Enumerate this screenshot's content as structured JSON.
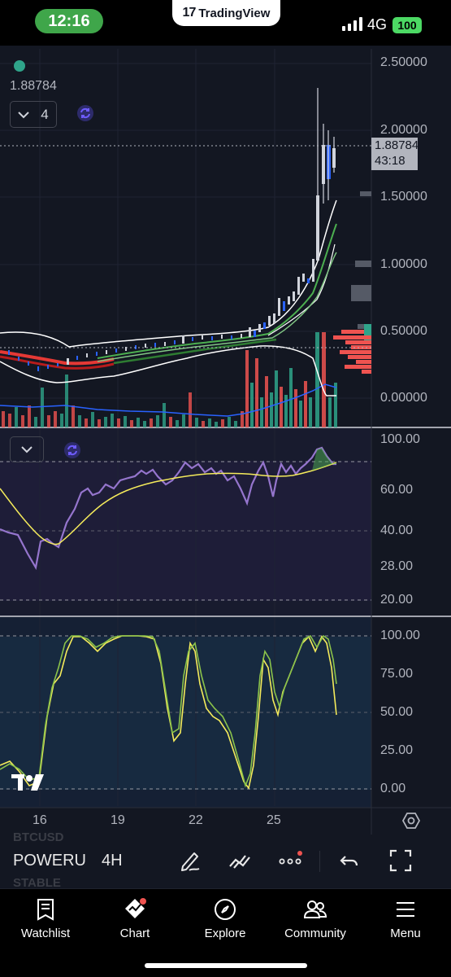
{
  "status_bar": {
    "time": "12:16",
    "app_name": "TradingView",
    "network": "4G",
    "battery": "100"
  },
  "chart": {
    "last_price": "1.88784",
    "indicators_count": "4",
    "price_tag": {
      "price": "1.88784",
      "countdown": "43:18"
    },
    "price_axis": [
      "2.50000",
      "2.00000",
      "1.50000",
      "1.00000",
      "0.50000",
      "0.00000"
    ],
    "rsi_axis": [
      "100.00",
      "60.00",
      "40.00",
      "28.00",
      "20.00"
    ],
    "stoch_axis": [
      "100.00",
      "75.00",
      "50.00",
      "25.00",
      "0.00"
    ],
    "dates": [
      "16",
      "19",
      "22",
      "25"
    ],
    "colors": {
      "background": "#131722",
      "up": "#2fa48a",
      "down": "#ef5350",
      "rsi": "#9575cd",
      "signal": "#f5eb5b"
    }
  },
  "toolbar": {
    "ghost_top": "BTCUSD",
    "symbol": "POWERU",
    "ghost_bottom": "STABLE",
    "timeframe": "4H",
    "icons": [
      "pencil-icon",
      "trend-icon",
      "more-icon",
      "undo-icon",
      "fullscreen-icon"
    ]
  },
  "nav": {
    "watchlist": "Watchlist",
    "chart": "Chart",
    "explore": "Explore",
    "community": "Community",
    "menu": "Menu"
  }
}
